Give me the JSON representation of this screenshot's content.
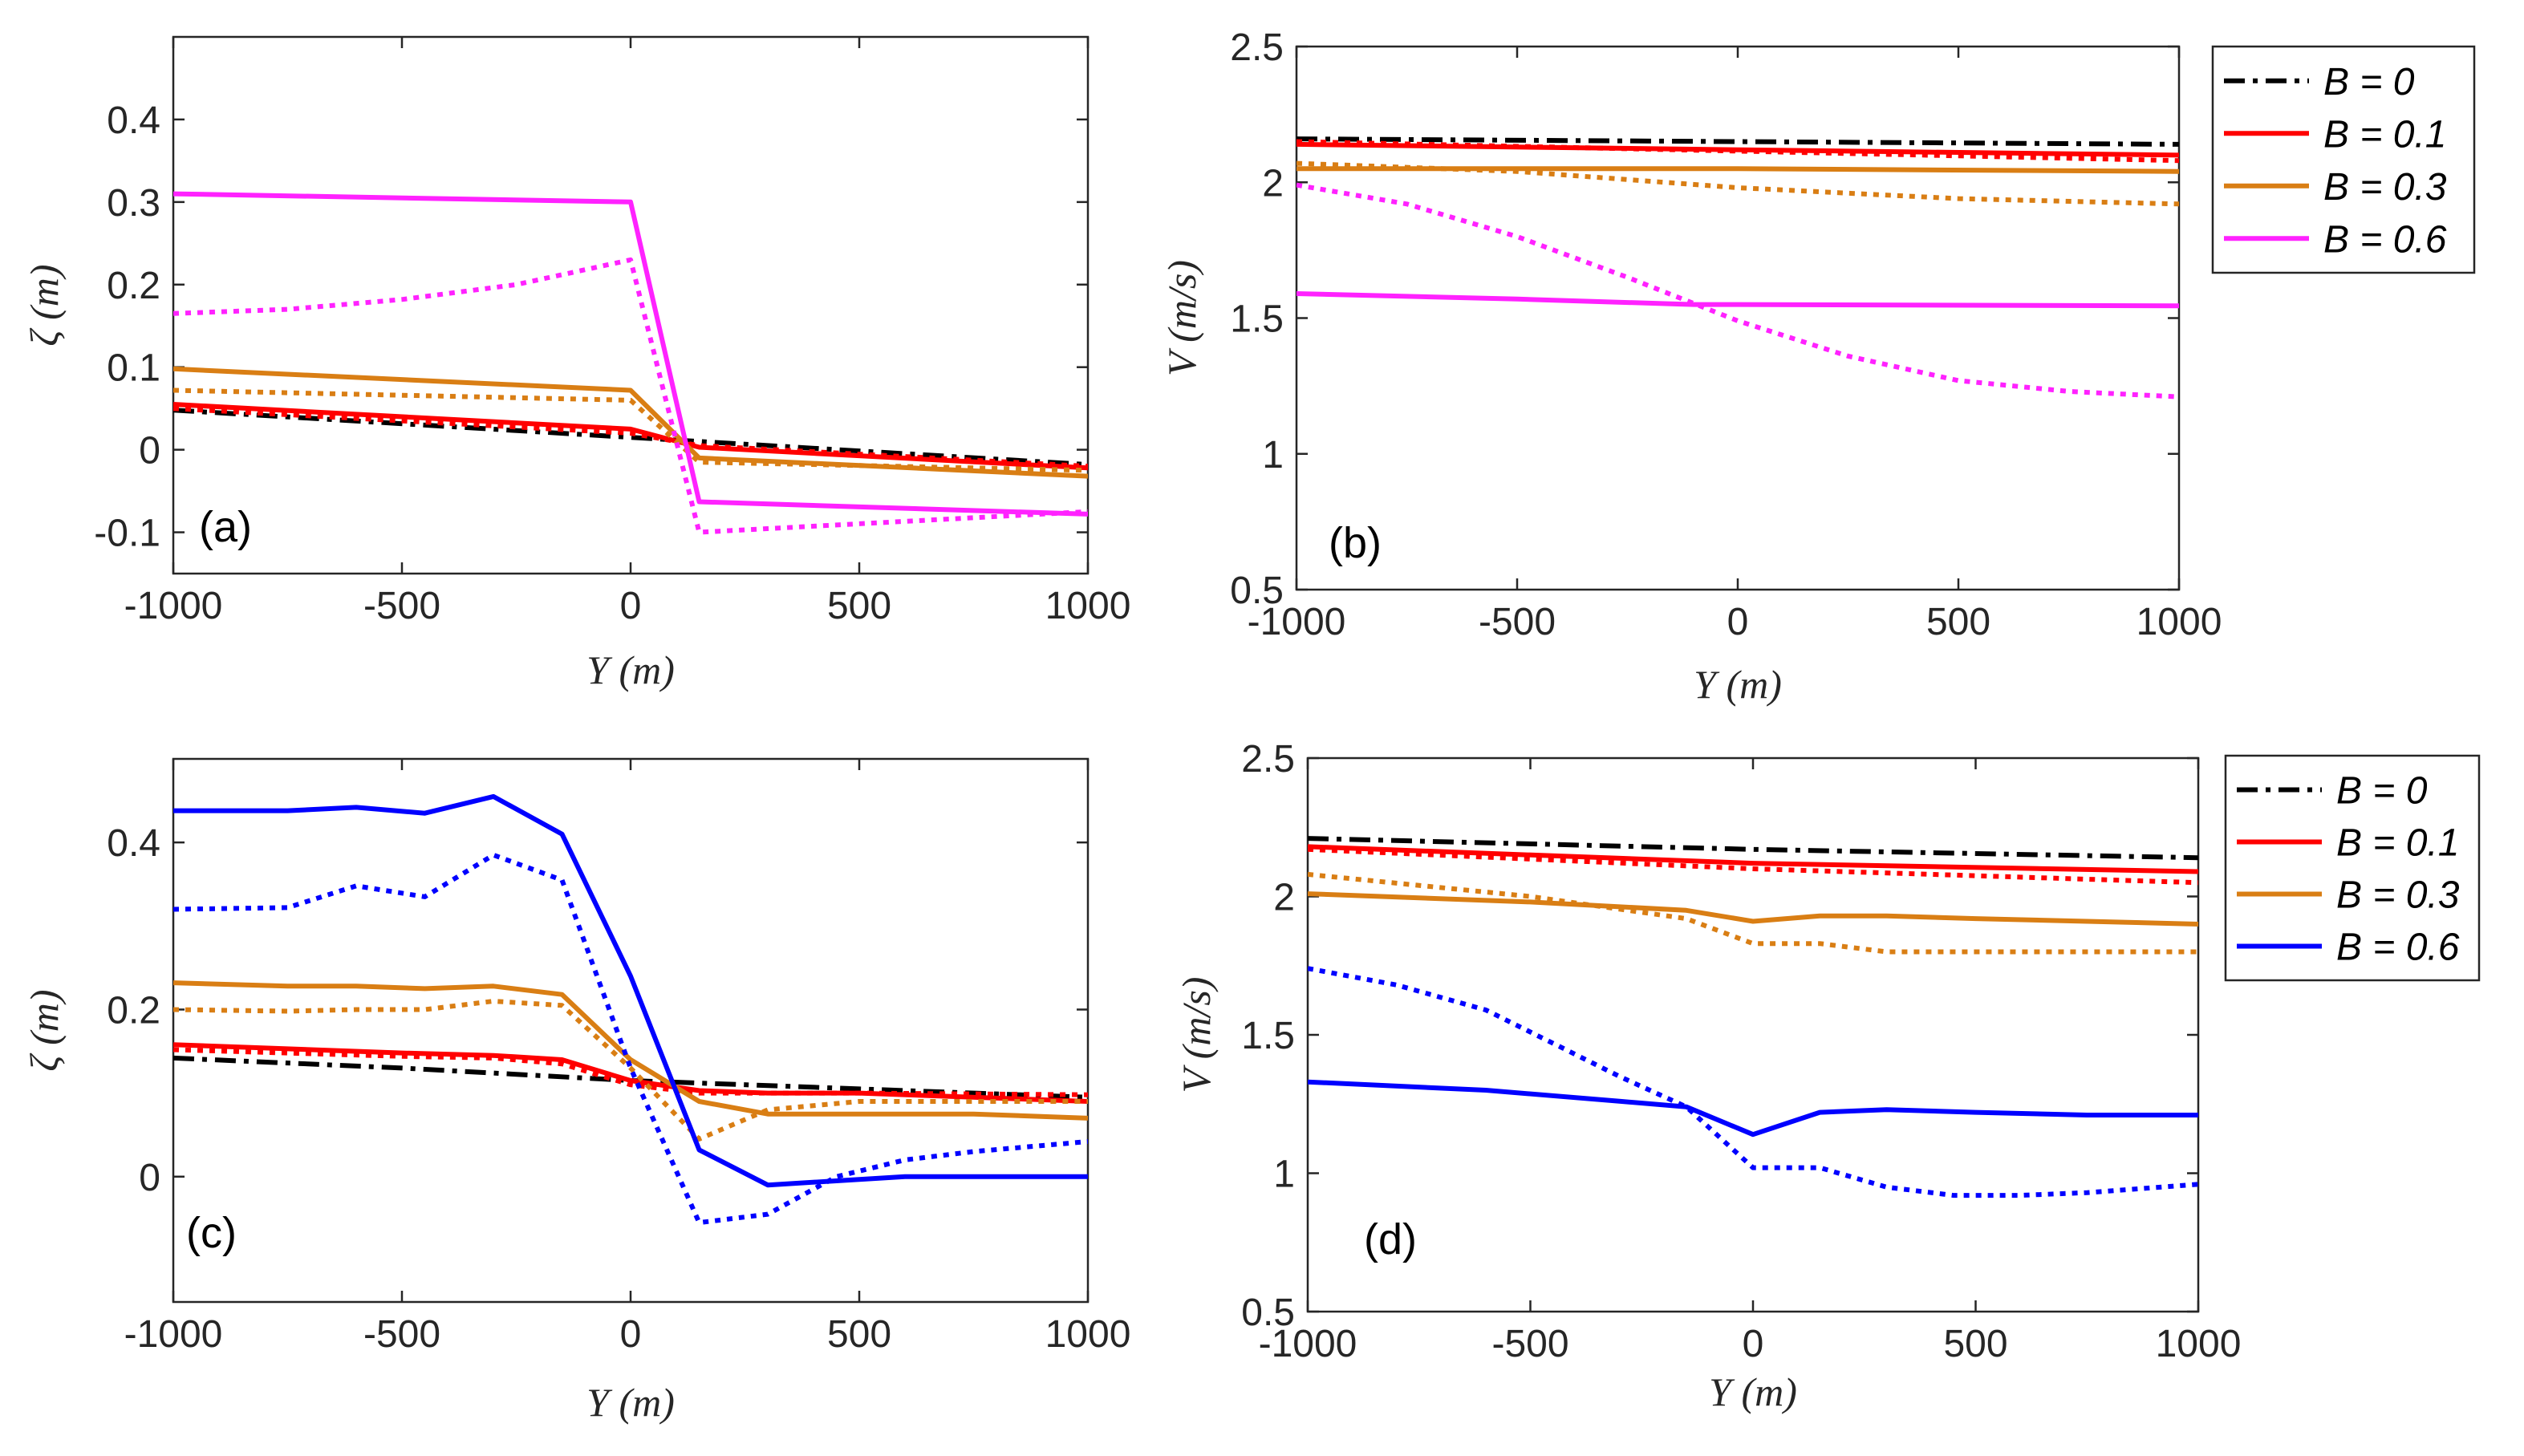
{
  "chart_data": [
    {
      "id": "a",
      "type": "line",
      "panel_label": "(a)",
      "xlabel": "Y (m)",
      "ylabel": "ζ (m)",
      "xlim": [
        -1000,
        1000
      ],
      "ylim": [
        -0.15,
        0.5
      ],
      "xticks": [
        -1000,
        -500,
        0,
        500,
        1000
      ],
      "xtick_labels": [
        "-1000",
        "-500",
        "0",
        "500",
        "1000"
      ],
      "yticks": [
        -0.1,
        0,
        0.1,
        0.2,
        0.3,
        0.4
      ],
      "ytick_labels": [
        "-0.1",
        "0",
        "0.1",
        "0.2",
        "0.3",
        "0.4"
      ],
      "legend": null,
      "series": [
        {
          "name": "B = 0",
          "color": "#000000",
          "style": "dashdot",
          "x": [
            -1000,
            0,
            150,
            1000
          ],
          "y": [
            0.048,
            0.015,
            0.01,
            -0.018
          ]
        },
        {
          "name": "B = 0.1 solid",
          "color": "#ff0000",
          "style": "solid",
          "x": [
            -1000,
            0,
            150,
            1000
          ],
          "y": [
            0.055,
            0.025,
            0.003,
            -0.022
          ]
        },
        {
          "name": "B = 0.1 dotted",
          "color": "#ff0000",
          "style": "dotted",
          "x": [
            -1000,
            0,
            150,
            1000
          ],
          "y": [
            0.05,
            0.02,
            0.005,
            -0.02
          ]
        },
        {
          "name": "B = 0.3 solid",
          "color": "#d97e14",
          "style": "solid",
          "x": [
            -1000,
            0,
            150,
            1000
          ],
          "y": [
            0.098,
            0.072,
            -0.01,
            -0.032
          ]
        },
        {
          "name": "B = 0.3 dotted",
          "color": "#d97e14",
          "style": "dotted",
          "x": [
            -1000,
            0,
            150,
            1000
          ],
          "y": [
            0.072,
            0.06,
            -0.015,
            -0.025
          ]
        },
        {
          "name": "B = 0.6 solid",
          "color": "#ff22ff",
          "style": "solid",
          "x": [
            -1000,
            0,
            150,
            1000
          ],
          "y": [
            0.31,
            0.3,
            -0.063,
            -0.078
          ]
        },
        {
          "name": "B = 0.6 dotted",
          "color": "#ff22ff",
          "style": "dotted",
          "x": [
            -1000,
            -750,
            -500,
            -250,
            0,
            150,
            1000
          ],
          "y": [
            0.165,
            0.17,
            0.182,
            0.2,
            0.23,
            -0.1,
            -0.075
          ]
        }
      ]
    },
    {
      "id": "b",
      "type": "line",
      "panel_label": "(b)",
      "xlabel": "Y (m)",
      "ylabel": "V (m/s)",
      "xlim": [
        -1000,
        1000
      ],
      "ylim": [
        0.5,
        2.5
      ],
      "xticks": [
        -1000,
        -500,
        0,
        500,
        1000
      ],
      "xtick_labels": [
        "-1000",
        "-500",
        "0",
        "500",
        "1000"
      ],
      "yticks": [
        0.5,
        1,
        1.5,
        2,
        2.5
      ],
      "ytick_labels": [
        "0.5",
        "1",
        "1.5",
        "2",
        "2.5"
      ],
      "legend": {
        "position": "outside-right",
        "entries": [
          {
            "label": "B = 0",
            "color": "#000000",
            "style": "dashdot"
          },
          {
            "label": "B = 0.1",
            "color": "#ff0000",
            "style": "solid"
          },
          {
            "label": "B = 0.3",
            "color": "#d97e14",
            "style": "solid"
          },
          {
            "label": "B = 0.6",
            "color": "#ff22ff",
            "style": "solid"
          }
        ]
      },
      "series": [
        {
          "name": "B = 0",
          "color": "#000000",
          "style": "dashdot",
          "x": [
            -1000,
            1000
          ],
          "y": [
            2.16,
            2.14
          ]
        },
        {
          "name": "B = 0.1 solid",
          "color": "#ff0000",
          "style": "solid",
          "x": [
            -1000,
            1000
          ],
          "y": [
            2.14,
            2.1
          ]
        },
        {
          "name": "B = 0.1 dotted",
          "color": "#ff0000",
          "style": "dotted",
          "x": [
            -1000,
            1000
          ],
          "y": [
            2.15,
            2.08
          ]
        },
        {
          "name": "B = 0.3 solid",
          "color": "#d97e14",
          "style": "solid",
          "x": [
            -1000,
            0,
            1000
          ],
          "y": [
            2.05,
            2.05,
            2.04
          ]
        },
        {
          "name": "B = 0.3 dotted",
          "color": "#d97e14",
          "style": "dotted",
          "x": [
            -1000,
            -500,
            0,
            500,
            1000
          ],
          "y": [
            2.07,
            2.04,
            1.98,
            1.94,
            1.92
          ]
        },
        {
          "name": "B = 0.6 solid",
          "color": "#ff22ff",
          "style": "solid",
          "x": [
            -1000,
            -500,
            -100,
            0,
            1000
          ],
          "y": [
            1.59,
            1.57,
            1.55,
            1.55,
            1.545
          ]
        },
        {
          "name": "B = 0.6 dotted",
          "color": "#ff22ff",
          "style": "dotted",
          "x": [
            -1000,
            -750,
            -500,
            -250,
            0,
            250,
            500,
            750,
            1000
          ],
          "y": [
            1.99,
            1.92,
            1.8,
            1.65,
            1.49,
            1.36,
            1.27,
            1.23,
            1.21
          ]
        }
      ]
    },
    {
      "id": "c",
      "type": "line",
      "panel_label": "(c)",
      "xlabel": "Y (m)",
      "ylabel": "ζ (m)",
      "xlim": [
        -1000,
        1000
      ],
      "ylim": [
        -0.15,
        0.5
      ],
      "xticks": [
        -1000,
        -500,
        0,
        500,
        1000
      ],
      "xtick_labels": [
        "-1000",
        "-500",
        "0",
        "500",
        "1000"
      ],
      "yticks": [
        0,
        0.2,
        0.4
      ],
      "ytick_labels": [
        "0",
        "0.2",
        "0.4"
      ],
      "legend": null,
      "series": [
        {
          "name": "B = 0",
          "color": "#000000",
          "style": "dashdot",
          "x": [
            -1000,
            -500,
            0,
            150,
            500,
            1000
          ],
          "y": [
            0.142,
            0.13,
            0.115,
            0.112,
            0.105,
            0.095
          ]
        },
        {
          "name": "B = 0.1 solid",
          "color": "#ff0000",
          "style": "solid",
          "x": [
            -1000,
            -500,
            -300,
            -150,
            0,
            150,
            300,
            500,
            1000
          ],
          "y": [
            0.158,
            0.148,
            0.145,
            0.14,
            0.115,
            0.103,
            0.1,
            0.1,
            0.09
          ]
        },
        {
          "name": "B = 0.1 dotted",
          "color": "#ff0000",
          "style": "dotted",
          "x": [
            -1000,
            -500,
            -300,
            -150,
            0,
            150,
            300,
            500,
            1000
          ],
          "y": [
            0.152,
            0.144,
            0.142,
            0.135,
            0.11,
            0.1,
            0.1,
            0.1,
            0.098
          ]
        },
        {
          "name": "B = 0.3 solid",
          "color": "#d97e14",
          "style": "solid",
          "x": [
            -1000,
            -750,
            -600,
            -450,
            -300,
            -150,
            0,
            150,
            300,
            500,
            750,
            1000
          ],
          "y": [
            0.232,
            0.228,
            0.228,
            0.225,
            0.228,
            0.218,
            0.14,
            0.09,
            0.075,
            0.075,
            0.075,
            0.07
          ]
        },
        {
          "name": "B = 0.3 dotted",
          "color": "#d97e14",
          "style": "dotted",
          "x": [
            -1000,
            -750,
            -600,
            -450,
            -300,
            -150,
            0,
            150,
            300,
            500,
            1000
          ],
          "y": [
            0.2,
            0.198,
            0.2,
            0.2,
            0.21,
            0.205,
            0.13,
            0.045,
            0.08,
            0.09,
            0.09
          ]
        },
        {
          "name": "B = 0.6 solid",
          "color": "#0000ff",
          "style": "solid",
          "x": [
            -1000,
            -750,
            -600,
            -450,
            -300,
            -150,
            0,
            150,
            300,
            450,
            600,
            750,
            1000
          ],
          "y": [
            0.438,
            0.438,
            0.442,
            0.435,
            0.455,
            0.41,
            0.24,
            0.032,
            -0.01,
            -0.005,
            0.0,
            0.0,
            0.0
          ]
        },
        {
          "name": "B = 0.6 dotted",
          "color": "#0000ff",
          "style": "dotted",
          "x": [
            -1000,
            -750,
            -600,
            -450,
            -300,
            -150,
            0,
            150,
            300,
            450,
            600,
            750,
            1000
          ],
          "y": [
            0.32,
            0.322,
            0.348,
            0.335,
            0.385,
            0.355,
            0.13,
            -0.055,
            -0.045,
            0.0,
            0.02,
            0.03,
            0.042
          ]
        }
      ]
    },
    {
      "id": "d",
      "type": "line",
      "panel_label": "(d)",
      "xlabel": "Y (m)",
      "ylabel": "V (m/s)",
      "xlim": [
        -1000,
        1000
      ],
      "ylim": [
        0.5,
        2.5
      ],
      "xticks": [
        -1000,
        -500,
        0,
        500,
        1000
      ],
      "xtick_labels": [
        "-1000",
        "-500",
        "0",
        "500",
        "1000"
      ],
      "yticks": [
        0.5,
        1,
        1.5,
        2,
        2.5
      ],
      "ytick_labels": [
        "0.5",
        "1",
        "1.5",
        "2",
        "2.5"
      ],
      "legend": {
        "position": "outside-right",
        "entries": [
          {
            "label": "B = 0",
            "color": "#000000",
            "style": "dashdot"
          },
          {
            "label": "B = 0.1",
            "color": "#ff0000",
            "style": "solid"
          },
          {
            "label": "B = 0.3",
            "color": "#d97e14",
            "style": "solid"
          },
          {
            "label": "B = 0.6",
            "color": "#0000ff",
            "style": "solid"
          }
        ]
      },
      "series": [
        {
          "name": "B = 0",
          "color": "#000000",
          "style": "dashdot",
          "x": [
            -1000,
            0,
            1000
          ],
          "y": [
            2.21,
            2.17,
            2.14
          ]
        },
        {
          "name": "B = 0.1 solid",
          "color": "#ff0000",
          "style": "solid",
          "x": [
            -1000,
            0,
            1000
          ],
          "y": [
            2.18,
            2.12,
            2.09
          ]
        },
        {
          "name": "B = 0.1 dotted",
          "color": "#ff0000",
          "style": "dotted",
          "x": [
            -1000,
            0,
            1000
          ],
          "y": [
            2.17,
            2.1,
            2.05
          ]
        },
        {
          "name": "B = 0.3 solid",
          "color": "#d97e14",
          "style": "solid",
          "x": [
            -1000,
            -500,
            -150,
            0,
            150,
            300,
            500,
            750,
            1000
          ],
          "y": [
            2.01,
            1.98,
            1.95,
            1.91,
            1.93,
            1.93,
            1.92,
            1.91,
            1.9
          ]
        },
        {
          "name": "B = 0.3 dotted",
          "color": "#d97e14",
          "style": "dotted",
          "x": [
            -1000,
            -500,
            -150,
            0,
            150,
            300,
            500,
            750,
            1000
          ],
          "y": [
            2.08,
            2.0,
            1.92,
            1.83,
            1.83,
            1.8,
            1.8,
            1.8,
            1.8
          ]
        },
        {
          "name": "B = 0.6 solid",
          "color": "#0000ff",
          "style": "solid",
          "x": [
            -1000,
            -600,
            -300,
            -150,
            0,
            150,
            300,
            500,
            750,
            1000
          ],
          "y": [
            1.33,
            1.3,
            1.26,
            1.24,
            1.14,
            1.22,
            1.23,
            1.22,
            1.21,
            1.21
          ]
        },
        {
          "name": "B = 0.6 dotted",
          "color": "#0000ff",
          "style": "dotted",
          "x": [
            -1000,
            -800,
            -600,
            -450,
            -300,
            -150,
            0,
            150,
            300,
            450,
            600,
            750,
            1000
          ],
          "y": [
            1.74,
            1.68,
            1.59,
            1.47,
            1.35,
            1.24,
            1.02,
            1.02,
            0.95,
            0.92,
            0.92,
            0.93,
            0.96
          ]
        }
      ]
    }
  ]
}
